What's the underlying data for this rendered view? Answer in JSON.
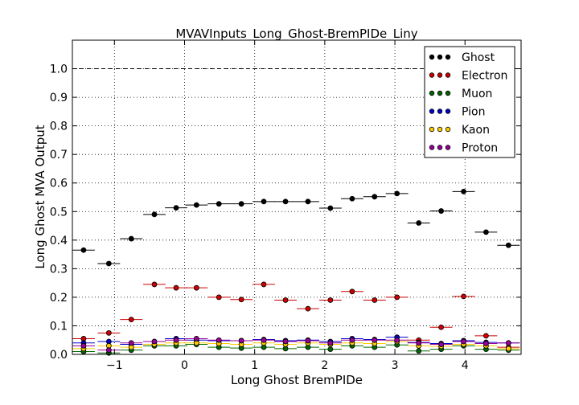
{
  "chart_data": {
    "type": "scatter",
    "title": "MVAVInputs_Long_Ghost-BremPIDe_Liny",
    "xlabel": "Long Ghost BremPIDe",
    "ylabel": "Long Ghost MVA Output",
    "xlim": [
      -1.6,
      4.8
    ],
    "ylim": [
      0.0,
      1.1
    ],
    "xticks": [
      -1,
      0,
      1,
      2,
      3,
      4
    ],
    "yticks": [
      0.0,
      0.1,
      0.2,
      0.3,
      0.4,
      0.5,
      0.6,
      0.7,
      0.8,
      0.9,
      1.0
    ],
    "tick_labels_x": [
      "−1",
      "0",
      "1",
      "2",
      "3",
      "4"
    ],
    "tick_labels_y": [
      "0.0",
      "0.1",
      "0.2",
      "0.3",
      "0.4",
      "0.5",
      "0.6",
      "0.7",
      "0.8",
      "0.9",
      "1.0"
    ],
    "grid": true,
    "reference_line": 1.0,
    "legend_position": "top-right",
    "x": [
      -1.44,
      -1.08,
      -0.76,
      -0.43,
      -0.12,
      0.17,
      0.49,
      0.81,
      1.13,
      1.44,
      1.76,
      2.08,
      2.39,
      2.71,
      3.03,
      3.34,
      3.66,
      3.98,
      4.3,
      4.62
    ],
    "x_half_width": 0.16,
    "series": [
      {
        "name": "Ghost",
        "color": "#000000",
        "values": [
          0.365,
          0.318,
          0.405,
          0.49,
          0.513,
          0.523,
          0.527,
          0.527,
          0.535,
          0.535,
          0.535,
          0.512,
          0.545,
          0.552,
          0.563,
          0.46,
          0.502,
          0.57,
          0.428,
          0.382
        ]
      },
      {
        "name": "Electron",
        "color": "#cc0000",
        "values": [
          0.055,
          0.075,
          0.122,
          0.245,
          0.233,
          0.233,
          0.2,
          0.192,
          0.245,
          0.19,
          0.16,
          0.19,
          0.22,
          0.19,
          0.2,
          0.05,
          0.095,
          0.203,
          0.065,
          0.025
        ]
      },
      {
        "name": "Muon",
        "color": "#006600",
        "values": [
          0.01,
          0.005,
          0.015,
          0.03,
          0.03,
          0.035,
          0.025,
          0.022,
          0.025,
          0.02,
          0.025,
          0.018,
          0.03,
          0.025,
          0.033,
          0.012,
          0.018,
          0.03,
          0.018,
          0.015
        ]
      },
      {
        "name": "Pion",
        "color": "#0000cc",
        "values": [
          0.04,
          0.045,
          0.035,
          0.045,
          0.055,
          0.05,
          0.048,
          0.048,
          0.052,
          0.048,
          0.05,
          0.045,
          0.055,
          0.052,
          0.06,
          0.042,
          0.038,
          0.048,
          0.042,
          0.04
        ]
      },
      {
        "name": "Kaon",
        "color": "#ffcc00",
        "values": [
          0.02,
          0.03,
          0.025,
          0.035,
          0.04,
          0.04,
          0.038,
          0.035,
          0.04,
          0.035,
          0.04,
          0.035,
          0.04,
          0.038,
          0.045,
          0.03,
          0.028,
          0.035,
          0.03,
          0.02
        ]
      },
      {
        "name": "Proton",
        "color": "#990099",
        "values": [
          0.03,
          0.015,
          0.04,
          0.045,
          0.05,
          0.055,
          0.05,
          0.048,
          0.05,
          0.045,
          0.048,
          0.04,
          0.05,
          0.05,
          0.05,
          0.04,
          0.035,
          0.045,
          0.038,
          0.04
        ]
      }
    ]
  }
}
